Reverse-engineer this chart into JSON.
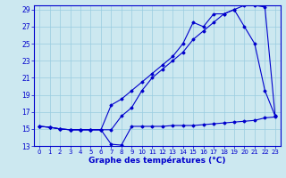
{
  "title": "",
  "xlabel": "Graphe des températures (°C)",
  "ylabel": "",
  "background_color": "#cce8f0",
  "grid_color": "#99cce0",
  "line_color": "#0000cc",
  "xlim": [
    -0.5,
    23.5
  ],
  "ylim": [
    13,
    29.5
  ],
  "yticks": [
    13,
    15,
    17,
    19,
    21,
    23,
    25,
    27,
    29
  ],
  "xticks": [
    0,
    1,
    2,
    3,
    4,
    5,
    6,
    7,
    8,
    9,
    10,
    11,
    12,
    13,
    14,
    15,
    16,
    17,
    18,
    19,
    20,
    21,
    22,
    23
  ],
  "line1_x": [
    0,
    1,
    2,
    3,
    4,
    5,
    6,
    7,
    8,
    9,
    10,
    11,
    12,
    13,
    14,
    15,
    16,
    17,
    18,
    19,
    20,
    21,
    22,
    23
  ],
  "line1_y": [
    15.3,
    15.2,
    15.0,
    14.9,
    14.9,
    14.9,
    14.9,
    13.2,
    13.1,
    15.3,
    15.3,
    15.3,
    15.3,
    15.4,
    15.4,
    15.4,
    15.5,
    15.6,
    15.7,
    15.8,
    15.9,
    16.0,
    16.3,
    16.4
  ],
  "line2_x": [
    0,
    1,
    2,
    3,
    4,
    5,
    6,
    7,
    8,
    9,
    10,
    11,
    12,
    13,
    14,
    15,
    16,
    17,
    18,
    19,
    20,
    21,
    22,
    23
  ],
  "line2_y": [
    15.3,
    15.2,
    15.0,
    14.9,
    14.9,
    14.9,
    14.9,
    14.9,
    16.5,
    17.5,
    19.5,
    21.0,
    22.0,
    23.0,
    24.0,
    25.5,
    26.5,
    27.5,
    28.5,
    29.0,
    29.5,
    29.5,
    29.3,
    16.5
  ],
  "line3_x": [
    0,
    1,
    2,
    3,
    4,
    5,
    6,
    7,
    8,
    9,
    10,
    11,
    12,
    13,
    14,
    15,
    16,
    17,
    18,
    19,
    20,
    21,
    22,
    23
  ],
  "line3_y": [
    15.3,
    15.2,
    15.0,
    14.9,
    14.9,
    14.9,
    14.9,
    17.8,
    18.5,
    19.5,
    20.5,
    21.5,
    22.5,
    23.5,
    25.0,
    27.5,
    27.0,
    28.5,
    28.5,
    29.0,
    27.0,
    25.0,
    19.5,
    16.5
  ]
}
